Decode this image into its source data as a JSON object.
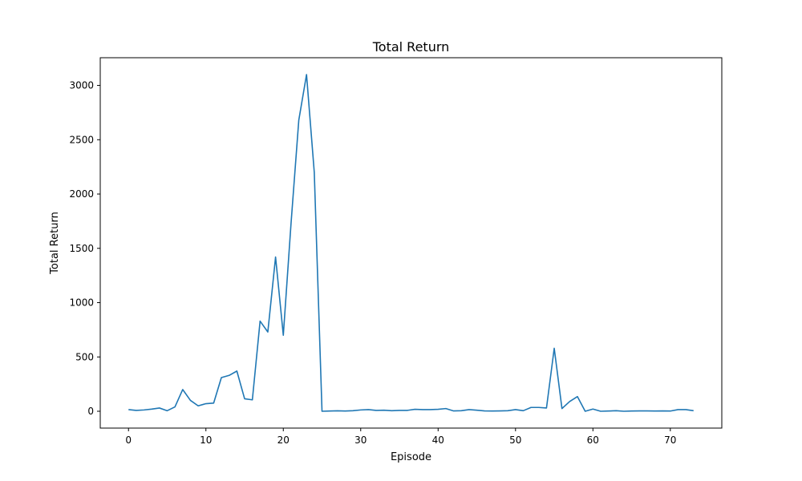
{
  "chart_data": {
    "type": "line",
    "title": "Total Return",
    "xlabel": "Episode",
    "ylabel": "Total Return",
    "xlim": [
      -3.65,
      76.65
    ],
    "ylim": [
      -155,
      3255
    ],
    "xticks": [
      0,
      10,
      20,
      30,
      40,
      50,
      60,
      70
    ],
    "yticks": [
      0,
      500,
      1000,
      1500,
      2000,
      2500,
      3000
    ],
    "grid": false,
    "colors": {
      "line": "#1f77b4"
    },
    "series": [
      {
        "x": [
          0,
          1,
          2,
          3,
          4,
          5,
          6,
          7,
          8,
          9,
          10,
          11,
          12,
          13,
          14,
          15,
          16,
          17,
          18,
          19,
          20,
          21,
          22,
          23,
          24,
          25,
          26,
          27,
          28,
          29,
          30,
          31,
          32,
          33,
          34,
          35,
          36,
          37,
          38,
          39,
          40,
          41,
          42,
          43,
          44,
          45,
          46,
          47,
          48,
          49,
          50,
          51,
          52,
          53,
          54,
          55,
          56,
          57,
          58,
          59,
          60,
          61,
          62,
          63,
          64,
          65,
          66,
          67,
          68,
          69,
          70,
          71,
          72,
          73
        ],
        "values": [
          15,
          8,
          12,
          20,
          30,
          5,
          40,
          200,
          100,
          50,
          70,
          75,
          310,
          330,
          370,
          115,
          105,
          830,
          730,
          1420,
          700,
          1730,
          2680,
          3100,
          2200,
          0,
          2,
          4,
          2,
          5,
          12,
          15,
          8,
          10,
          5,
          8,
          8,
          18,
          15,
          15,
          18,
          25,
          3,
          5,
          15,
          10,
          3,
          2,
          3,
          5,
          15,
          5,
          35,
          35,
          30,
          580,
          25,
          90,
          135,
          0,
          20,
          0,
          2,
          5,
          0,
          2,
          3,
          3,
          2,
          3,
          2,
          15,
          15,
          5
        ]
      }
    ]
  }
}
